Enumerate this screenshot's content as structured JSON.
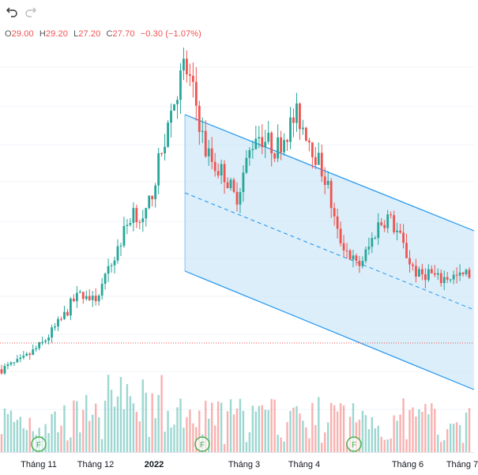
{
  "toolbar": {
    "undo_icon": "undo-icon",
    "redo_icon": "redo-icon"
  },
  "legend": {
    "o_label": "O",
    "o_value": "29.00",
    "h_label": "H",
    "h_value": "29.20",
    "l_label": "L",
    "l_value": "27.20",
    "c_label": "C",
    "c_value": "27.70",
    "change": "−0.30 (−1.07%)"
  },
  "colors": {
    "up": "#26a69a",
    "down": "#ef5350",
    "channel_fill": "#cfe8f7",
    "channel_line": "#2196f3",
    "event_marker": "#4caf50"
  },
  "xaxis": {
    "labels": [
      "Tháng 11",
      "Tháng 12",
      "2022",
      "Tháng 3",
      "Tháng 4",
      "Tháng 6",
      "Tháng 7"
    ]
  },
  "events": [
    {
      "label": "F"
    },
    {
      "label": "F"
    },
    {
      "label": "F"
    }
  ],
  "chart_data": {
    "type": "candlestick",
    "last_close": 27.7,
    "price_trend": [
      14,
      14.5,
      15,
      16,
      17,
      18.5,
      20,
      22,
      23,
      22,
      24,
      27,
      30,
      33,
      31,
      36,
      41,
      46,
      50,
      46,
      40,
      38,
      37,
      34,
      38,
      42,
      41,
      40,
      42,
      44,
      42,
      39,
      36,
      30,
      28,
      26,
      28,
      31,
      32,
      30,
      27,
      25,
      25.5,
      24.5,
      25,
      24.8,
      25.3
    ]
  }
}
